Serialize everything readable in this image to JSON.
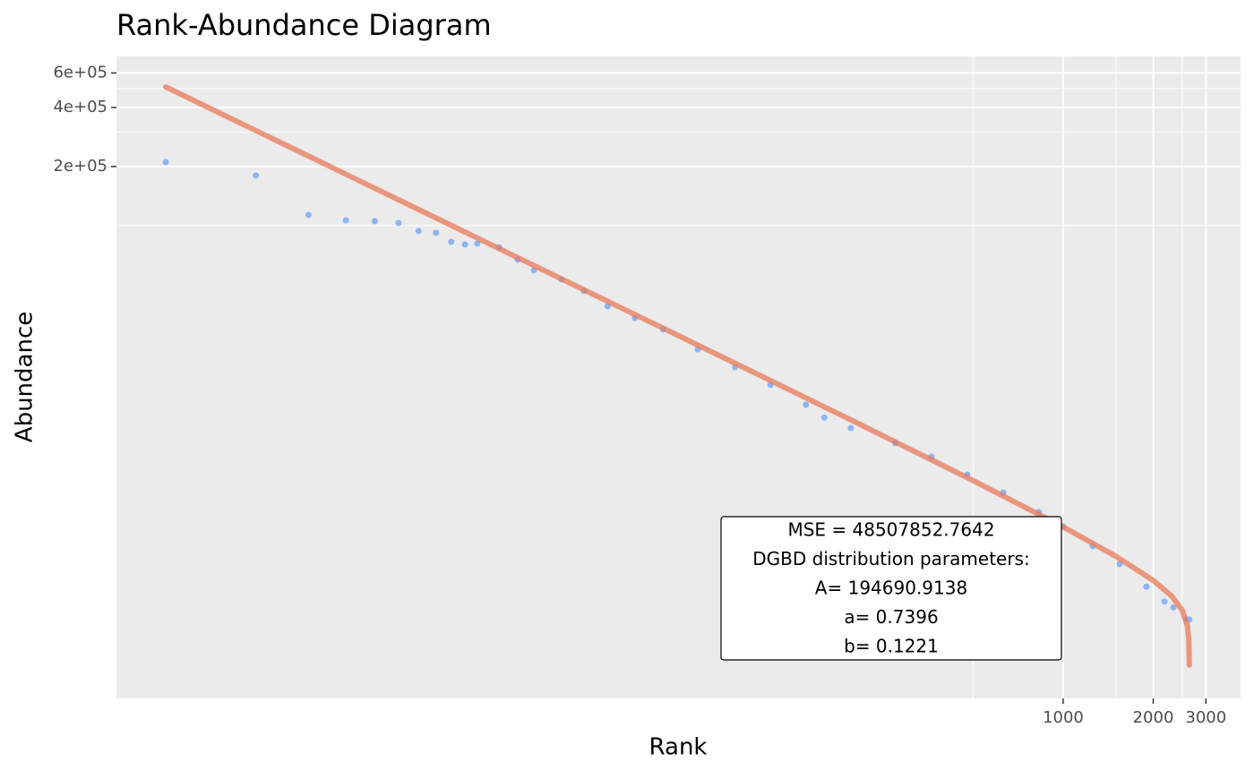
{
  "chart_data": {
    "type": "scatter",
    "title": "Rank-Abundance Diagram",
    "x_label": "Rank",
    "y_label": "Abundance",
    "xscale": "log",
    "yscale": "log",
    "xlim": [
      0.684,
      3917
    ],
    "ylim": [
      388,
      728800
    ],
    "xticks": [
      1000,
      2000,
      3000
    ],
    "xminor": [
      500,
      1500,
      2500
    ],
    "yticks": [
      {
        "value": 200000,
        "label": "2e+05"
      },
      {
        "value": 400000,
        "label": "4e+05"
      },
      {
        "value": 600000,
        "label": "6e+05"
      }
    ],
    "yminor": [
      100000,
      300000,
      500000
    ],
    "grid": true,
    "series": [
      {
        "type": "scatter",
        "color": "#8db4f5",
        "x": [
          1,
          2,
          3,
          4,
          5,
          6,
          7,
          8,
          9,
          10,
          11,
          13,
          15,
          17,
          21,
          25,
          30,
          37,
          46,
          60,
          80,
          105,
          138,
          159,
          195,
          275,
          363,
          478,
          630,
          830,
          1000,
          1256,
          1545,
          1898,
          2180,
          2335,
          2590,
          2640
        ],
        "values": [
          210800,
          180000,
          113300,
          106400,
          105300,
          103100,
          93800,
          91900,
          82700,
          80100,
          81000,
          77600,
          67000,
          59100,
          53200,
          46400,
          38800,
          33800,
          29500,
          23400,
          19000,
          15400,
          12200,
          10500,
          9280,
          7760,
          6630,
          5370,
          4350,
          3460,
          2920,
          2320,
          1880,
          1440,
          1210,
          1130,
          980,
          980
        ]
      },
      {
        "type": "line",
        "color": "#e8795a",
        "x": [
          1,
          2,
          3,
          5,
          7,
          10,
          20,
          50,
          100,
          200,
          500,
          1000,
          1500,
          2000,
          2300,
          2500,
          2600,
          2630,
          2640
        ],
        "values": [
          509500,
          305100,
          226100,
          154900,
          120800,
          92800,
          55500,
          28160,
          16820,
          10030,
          5011,
          2905,
          2059,
          1551,
          1295,
          1093,
          913,
          771,
          574
        ]
      }
    ],
    "annotation": [
      "MSE = 48507852.7642",
      "DGBD distribution parameters:",
      "A= 194690.9138",
      "a= 0.7396",
      "b= 0.1221"
    ]
  }
}
